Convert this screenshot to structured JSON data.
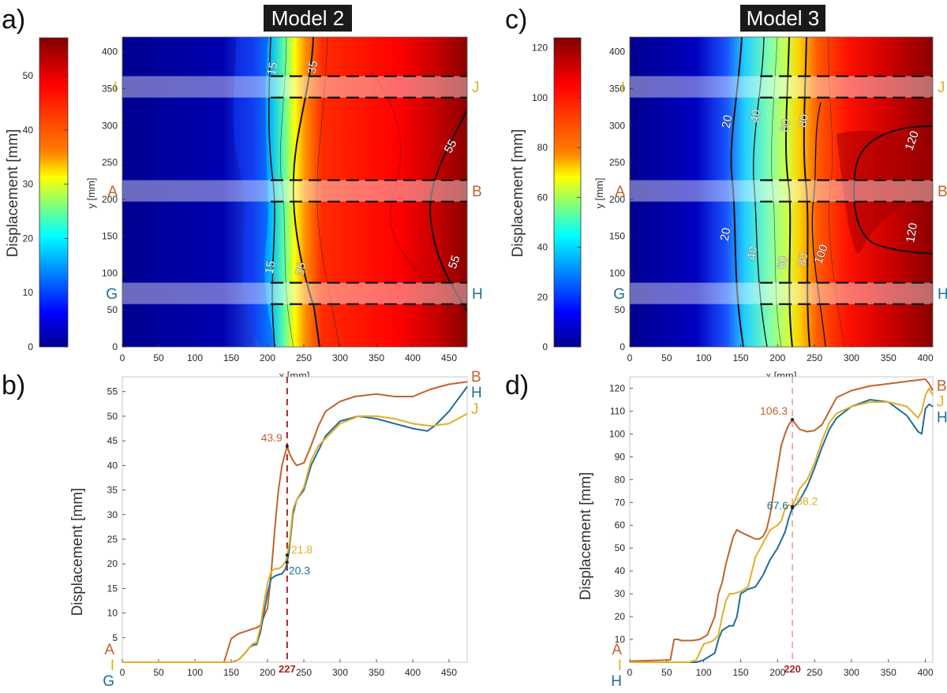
{
  "chart_data": [
    {
      "panel": "a)",
      "type": "heatmap",
      "title": "Model 2",
      "xlabel": "x [mm]",
      "ylabel": "y [mm]",
      "xlim": [
        0,
        475
      ],
      "ylim": [
        0,
        420
      ],
      "xticks": [
        0,
        50,
        100,
        150,
        200,
        250,
        300,
        350,
        400,
        450
      ],
      "yticks": [
        0,
        50,
        100,
        150,
        200,
        250,
        300,
        350,
        400
      ],
      "colorbar": {
        "label": "Displacement [mm]",
        "range": [
          0,
          57
        ],
        "ticks": [
          0,
          10,
          20,
          30,
          40,
          50
        ]
      },
      "front_x_mm": 215,
      "max_value": 57,
      "contour_labels": [
        "15",
        "35",
        "55",
        "15",
        "35",
        "55"
      ],
      "bands": [
        {
          "y_low": 338,
          "y_high": 367,
          "left": "I",
          "right": "J"
        },
        {
          "y_low": 197,
          "y_high": 226,
          "left": "A",
          "right": "B"
        },
        {
          "y_low": 58,
          "y_high": 87,
          "left": "G",
          "right": "H"
        }
      ]
    },
    {
      "panel": "b)",
      "type": "line",
      "xlabel": "",
      "ylabel": "Displacement [mm]",
      "xlim": [
        0,
        475
      ],
      "ylim": [
        0,
        58
      ],
      "xticks": [
        0,
        50,
        100,
        150,
        200,
        250,
        300,
        350,
        400,
        450
      ],
      "yticks": [
        5,
        10,
        15,
        20,
        25,
        30,
        35,
        40,
        45,
        50,
        55
      ],
      "marker_x": 227,
      "marker_label": "227",
      "series": [
        {
          "name": "B",
          "start_label": "A",
          "color": "#c0642b",
          "x": [
            0,
            140,
            150,
            160,
            170,
            180,
            185,
            190,
            200,
            205,
            210,
            215,
            220,
            227,
            230,
            235,
            240,
            250,
            260,
            270,
            280,
            300,
            320,
            350,
            375,
            400,
            425,
            450,
            475
          ],
          "y": [
            0,
            0,
            4.8,
            5.8,
            6.3,
            6.8,
            7.0,
            7.5,
            11,
            18,
            27,
            35,
            40,
            43.9,
            42.5,
            41,
            40,
            40.5,
            44,
            48,
            51,
            53,
            54,
            54.5,
            54,
            54,
            55.5,
            56.5,
            57
          ]
        },
        {
          "name": "H",
          "start_label": "G",
          "color": "#1f6e96",
          "x": [
            0,
            150,
            160,
            170,
            175,
            180,
            185,
            190,
            195,
            200,
            205,
            210,
            215,
            220,
            225,
            227,
            230,
            235,
            240,
            250,
            260,
            270,
            280,
            300,
            325,
            350,
            375,
            400,
            420,
            430,
            450,
            475
          ],
          "y": [
            0,
            0,
            0.5,
            2,
            3,
            3.5,
            3.6,
            6,
            10,
            14,
            17,
            17.5,
            17.8,
            18,
            19,
            20.3,
            23,
            30,
            33,
            35,
            40,
            43,
            46,
            49,
            50,
            49.5,
            48.5,
            47.5,
            47,
            48,
            51,
            56
          ]
        },
        {
          "name": "J",
          "start_label": "I",
          "color": "#e3ad28",
          "x": [
            0,
            150,
            160,
            170,
            175,
            180,
            185,
            190,
            195,
            200,
            205,
            210,
            215,
            220,
            225,
            227,
            230,
            235,
            240,
            250,
            260,
            270,
            280,
            300,
            325,
            350,
            375,
            400,
            425,
            450,
            475
          ],
          "y": [
            0,
            0,
            0.5,
            2,
            3,
            3.8,
            4,
            7,
            12,
            16,
            18.5,
            19,
            19,
            19.5,
            20.5,
            21.8,
            24,
            31,
            33,
            35.5,
            41,
            44,
            45.5,
            48.5,
            50,
            50,
            49.5,
            48.5,
            48,
            48.5,
            50.5
          ]
        }
      ],
      "annotations": [
        {
          "x": 227,
          "y": 43.9,
          "text": "43.9",
          "series": "B"
        },
        {
          "x": 227,
          "y": 21.8,
          "text": "21.8",
          "series": "J"
        },
        {
          "x": 227,
          "y": 20.3,
          "text": "20.3",
          "series": "H"
        }
      ]
    },
    {
      "panel": "c)",
      "type": "heatmap",
      "title": "Model 3",
      "xlabel": "x [mm]",
      "ylabel": "y [mm]",
      "xlim": [
        0,
        410
      ],
      "ylim": [
        0,
        420
      ],
      "xticks": [
        0,
        50,
        100,
        150,
        200,
        250,
        300,
        350,
        400
      ],
      "yticks": [
        0,
        50,
        100,
        150,
        200,
        250,
        300,
        350,
        400
      ],
      "colorbar": {
        "label": "Displacement [mm]",
        "range": [
          0,
          124
        ],
        "ticks": [
          0,
          20,
          40,
          60,
          80,
          100,
          120
        ]
      },
      "front_x_mm": 150,
      "max_value": 124,
      "contour_labels": [
        "20",
        "40",
        "60",
        "80",
        "120",
        "20",
        "40",
        "60",
        "80",
        "100",
        "120"
      ],
      "bands": [
        {
          "y_low": 338,
          "y_high": 367,
          "left": "I",
          "right": "J"
        },
        {
          "y_low": 197,
          "y_high": 226,
          "left": "A",
          "right": "B"
        },
        {
          "y_low": 58,
          "y_high": 87,
          "left": "G",
          "right": "H"
        }
      ]
    },
    {
      "panel": "d)",
      "type": "line",
      "xlabel": "",
      "ylabel": "Displacement [mm]",
      "xlim": [
        0,
        410
      ],
      "ylim": [
        0,
        125
      ],
      "xticks": [
        0,
        50,
        100,
        150,
        200,
        250,
        300,
        350,
        400
      ],
      "yticks": [
        10,
        20,
        30,
        40,
        50,
        60,
        70,
        80,
        90,
        100,
        110,
        120
      ],
      "marker_x": 220,
      "marker_label": "220",
      "series": [
        {
          "name": "B",
          "start_label": "A",
          "color": "#c0642b",
          "x": [
            0,
            55,
            60,
            65,
            70,
            75,
            85,
            95,
            100,
            105,
            115,
            120,
            125,
            130,
            140,
            145,
            150,
            160,
            170,
            175,
            180,
            185,
            190,
            195,
            200,
            205,
            210,
            215,
            220,
            225,
            230,
            240,
            250,
            260,
            270,
            280,
            300,
            325,
            350,
            375,
            400,
            405,
            410
          ],
          "y": [
            0.5,
            1,
            10,
            10,
            9.5,
            9.5,
            9.5,
            10,
            11,
            12,
            20,
            30,
            35,
            43,
            55,
            58,
            57,
            55.5,
            54,
            54,
            55,
            58,
            65,
            75,
            85,
            95,
            100,
            104,
            106.3,
            104,
            102,
            101,
            101.5,
            104,
            110,
            116,
            119,
            121,
            122,
            123,
            124,
            122,
            119
          ]
        },
        {
          "name": "H",
          "start_label": "H",
          "color": "#1f6e96",
          "x": [
            0,
            90,
            100,
            105,
            110,
            115,
            120,
            125,
            130,
            135,
            140,
            145,
            150,
            160,
            170,
            180,
            190,
            200,
            210,
            215,
            220,
            225,
            230,
            240,
            250,
            260,
            270,
            280,
            300,
            325,
            350,
            375,
            390,
            395,
            400,
            405,
            410
          ],
          "y": [
            0,
            0,
            1,
            2,
            3,
            4,
            10,
            14,
            15,
            16,
            16,
            20,
            30,
            32,
            33,
            38,
            45,
            50,
            57,
            63,
            67.6,
            69,
            71,
            77,
            85,
            94,
            102,
            107,
            112,
            115,
            114,
            108,
            101,
            100,
            111,
            113,
            112
          ]
        },
        {
          "name": "J",
          "start_label": "I",
          "color": "#e3ad28",
          "x": [
            0,
            80,
            90,
            100,
            110,
            115,
            120,
            125,
            130,
            135,
            140,
            150,
            160,
            170,
            180,
            190,
            200,
            205,
            210,
            215,
            220,
            225,
            230,
            240,
            250,
            260,
            270,
            280,
            300,
            325,
            350,
            375,
            390,
            395,
            400,
            405,
            410
          ],
          "y": [
            0,
            0,
            1,
            8,
            9,
            10,
            12,
            20,
            27,
            30,
            30,
            31,
            33,
            46,
            52,
            58,
            60,
            62,
            67,
            69,
            68.2,
            72,
            76,
            80,
            87,
            97,
            105,
            109,
            112,
            114,
            114,
            112,
            107,
            110,
            117,
            120,
            117
          ]
        }
      ],
      "annotations": [
        {
          "x": 220,
          "y": 106.3,
          "text": "106.3",
          "series": "B"
        },
        {
          "x": 220,
          "y": 68.2,
          "text": "68.2",
          "series": "J"
        },
        {
          "x": 220,
          "y": 67.6,
          "text": "67.6",
          "series": "H"
        }
      ]
    }
  ]
}
